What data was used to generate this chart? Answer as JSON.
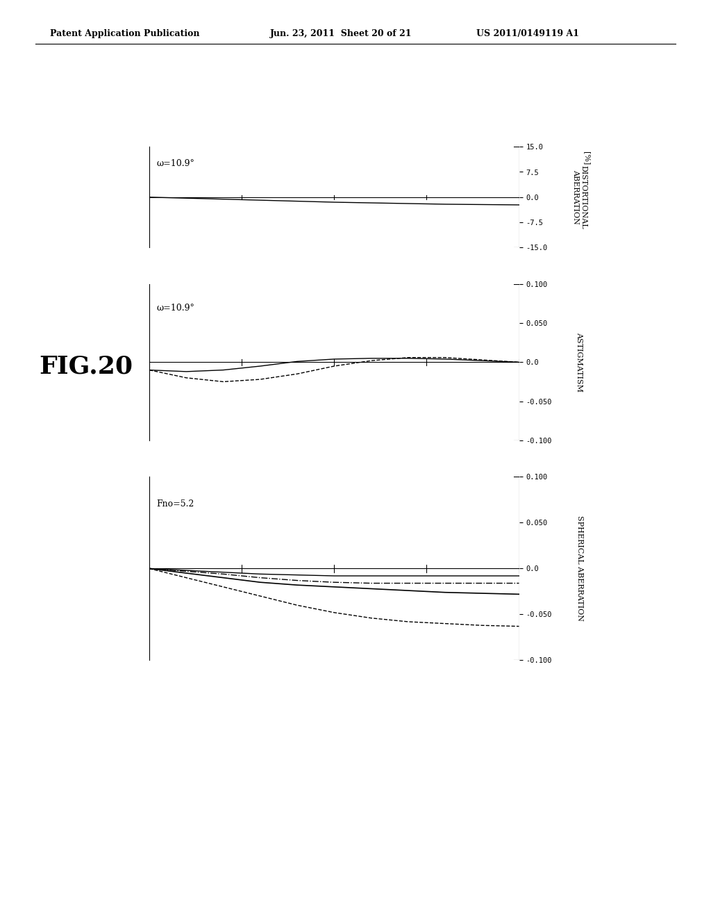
{
  "header_left": "Patent Application Publication",
  "header_mid": "Jun. 23, 2011  Sheet 20 of 21",
  "header_right": "US 2011/0149119 A1",
  "fig_label": "FIG.20",
  "background_color": "#ffffff",
  "plots": [
    {
      "type": "distortion",
      "label": "ω=10.9°",
      "ylabel_lines": [
        "DISTORTIONAL",
        "ABERRATION"
      ],
      "ylabel_unit": "[%]",
      "ylim": [
        -15.0,
        15.0
      ],
      "yticks": [
        -15.0,
        -7.5,
        0.0,
        7.5,
        15.0
      ],
      "ytick_labels": [
        "-15.0",
        "-7.5",
        "0.0",
        "7.5",
        "15.0"
      ],
      "xlim": [
        0.0,
        1.0
      ],
      "lines": [
        {
          "style": "solid",
          "color": "#000000",
          "lw": 1.0,
          "points": [
            [
              0.0,
              0.0
            ],
            [
              0.1,
              -0.3
            ],
            [
              0.2,
              -0.6
            ],
            [
              0.3,
              -0.9
            ],
            [
              0.4,
              -1.2
            ],
            [
              0.5,
              -1.5
            ],
            [
              0.6,
              -1.7
            ],
            [
              0.7,
              -1.9
            ],
            [
              0.8,
              -2.1
            ],
            [
              0.9,
              -2.2
            ],
            [
              1.0,
              -2.3
            ]
          ]
        }
      ]
    },
    {
      "type": "astigmatism",
      "label": "ω=10.9°",
      "ylabel_lines": [
        "ASTIGMATISM"
      ],
      "ylabel_unit": "",
      "ylim": [
        -0.1,
        0.1
      ],
      "yticks": [
        -0.1,
        -0.05,
        0.0,
        0.05,
        0.1
      ],
      "ytick_labels": [
        "-0.100",
        "-0.050",
        "0.0",
        "0.050",
        "0.100"
      ],
      "xlim": [
        0.0,
        1.0
      ],
      "lines": [
        {
          "style": "solid",
          "color": "#000000",
          "lw": 1.0,
          "points": [
            [
              0.0,
              -0.01
            ],
            [
              0.1,
              -0.012
            ],
            [
              0.2,
              -0.01
            ],
            [
              0.3,
              -0.005
            ],
            [
              0.4,
              0.001
            ],
            [
              0.5,
              0.004
            ],
            [
              0.6,
              0.005
            ],
            [
              0.7,
              0.005
            ],
            [
              0.8,
              0.004
            ],
            [
              0.9,
              0.002
            ],
            [
              1.0,
              0.0
            ]
          ]
        },
        {
          "style": "dashed",
          "color": "#000000",
          "lw": 1.0,
          "points": [
            [
              0.0,
              -0.01
            ],
            [
              0.1,
              -0.02
            ],
            [
              0.2,
              -0.025
            ],
            [
              0.3,
              -0.022
            ],
            [
              0.4,
              -0.015
            ],
            [
              0.5,
              -0.005
            ],
            [
              0.6,
              0.002
            ],
            [
              0.7,
              0.006
            ],
            [
              0.8,
              0.006
            ],
            [
              0.9,
              0.003
            ],
            [
              1.0,
              0.0
            ]
          ]
        }
      ]
    },
    {
      "type": "spherical_aberration",
      "label": "Fno=5.2",
      "ylabel_lines": [
        "SPHERICAL ABERRATION"
      ],
      "ylabel_unit": "",
      "ylim": [
        -0.1,
        0.1
      ],
      "yticks": [
        -0.1,
        -0.05,
        0.0,
        0.05,
        0.1
      ],
      "ytick_labels": [
        "-0.100",
        "-0.050",
        "0.0",
        "0.050",
        "0.100"
      ],
      "xlim": [
        0.0,
        1.0
      ],
      "lines": [
        {
          "style": "solid",
          "color": "#000000",
          "lw": 1.2,
          "points": [
            [
              0.0,
              0.0
            ],
            [
              0.1,
              -0.005
            ],
            [
              0.2,
              -0.01
            ],
            [
              0.3,
              -0.015
            ],
            [
              0.4,
              -0.018
            ],
            [
              0.5,
              -0.02
            ],
            [
              0.6,
              -0.022
            ],
            [
              0.7,
              -0.024
            ],
            [
              0.8,
              -0.026
            ],
            [
              0.9,
              -0.027
            ],
            [
              1.0,
              -0.028
            ]
          ]
        },
        {
          "style": "solid",
          "color": "#000000",
          "lw": 1.0,
          "points": [
            [
              0.0,
              0.0
            ],
            [
              0.1,
              -0.002
            ],
            [
              0.2,
              -0.004
            ],
            [
              0.3,
              -0.006
            ],
            [
              0.4,
              -0.007
            ],
            [
              0.5,
              -0.008
            ],
            [
              0.6,
              -0.008
            ],
            [
              0.7,
              -0.008
            ],
            [
              0.8,
              -0.008
            ],
            [
              0.9,
              -0.008
            ],
            [
              1.0,
              -0.008
            ]
          ]
        },
        {
          "style": "dashed",
          "color": "#000000",
          "lw": 1.0,
          "points": [
            [
              0.0,
              0.0
            ],
            [
              0.1,
              -0.01
            ],
            [
              0.2,
              -0.02
            ],
            [
              0.3,
              -0.03
            ],
            [
              0.4,
              -0.04
            ],
            [
              0.5,
              -0.048
            ],
            [
              0.6,
              -0.054
            ],
            [
              0.7,
              -0.058
            ],
            [
              0.8,
              -0.06
            ],
            [
              0.9,
              -0.062
            ],
            [
              1.0,
              -0.063
            ]
          ]
        },
        {
          "style": "dashdot",
          "color": "#000000",
          "lw": 1.0,
          "points": [
            [
              0.0,
              0.0
            ],
            [
              0.1,
              -0.003
            ],
            [
              0.2,
              -0.006
            ],
            [
              0.3,
              -0.01
            ],
            [
              0.4,
              -0.013
            ],
            [
              0.5,
              -0.015
            ],
            [
              0.6,
              -0.016
            ],
            [
              0.7,
              -0.016
            ],
            [
              0.8,
              -0.016
            ],
            [
              0.9,
              -0.016
            ],
            [
              1.0,
              -0.016
            ]
          ]
        }
      ]
    }
  ]
}
